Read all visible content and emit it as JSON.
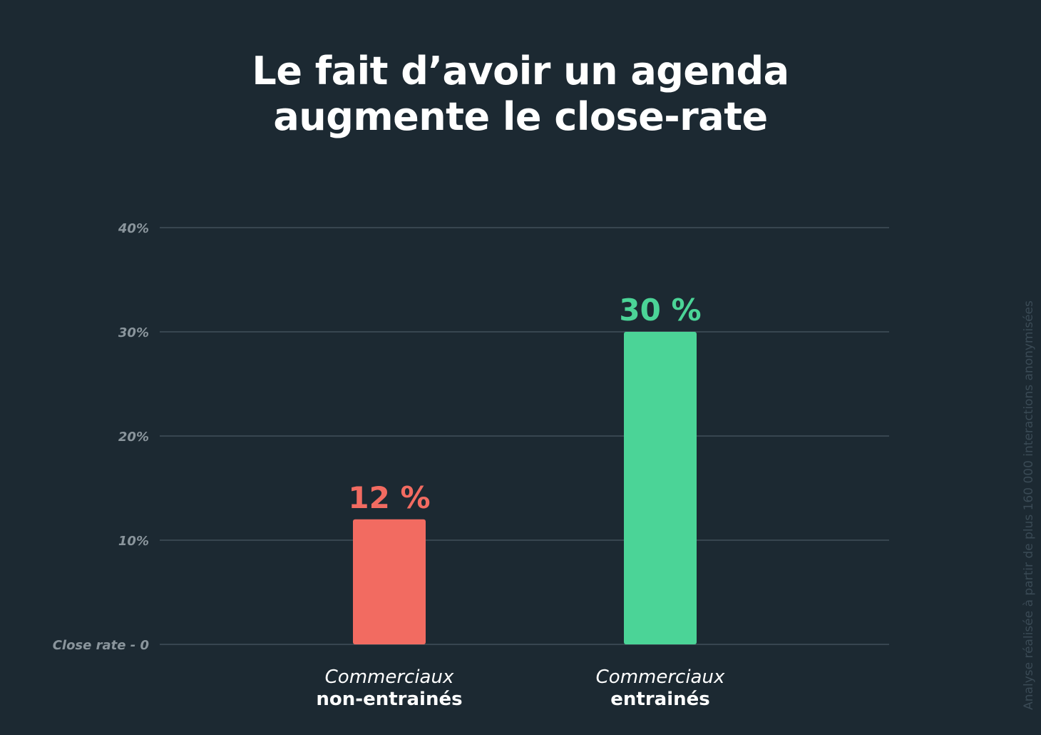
{
  "title_lines": [
    "Le fait d’avoir un agenda",
    "augmente le close-rate"
  ],
  "source_note": "Analyse réalisée à partir de plus 160 000 interactions anonymisées",
  "colors": {
    "background": "#1c2932",
    "grid": "#4a5862",
    "tick_label": "#8a959c",
    "category_text": "#ffffff",
    "series_untrained": "#f26b61",
    "series_trained": "#4bd497"
  },
  "chart_data": {
    "type": "bar",
    "title": "Le fait d’avoir un agenda augmente le close-rate",
    "ylim": [
      0,
      40
    ],
    "yticks": [
      {
        "value": 0,
        "label": "Close rate - 0"
      },
      {
        "value": 10,
        "label": "10%"
      },
      {
        "value": 20,
        "label": "20%"
      },
      {
        "value": 30,
        "label": "30%"
      },
      {
        "value": 40,
        "label": "40%"
      }
    ],
    "grid": true,
    "categories": [
      {
        "line1": "Commerciaux",
        "line2": "non-entrainés"
      },
      {
        "line1": "Commerciaux",
        "line2": "entrainés"
      }
    ],
    "values": [
      12,
      30
    ],
    "data_labels": [
      "12 %",
      "30 %"
    ],
    "bar_colors": [
      "#f26b61",
      "#4bd497"
    ]
  }
}
